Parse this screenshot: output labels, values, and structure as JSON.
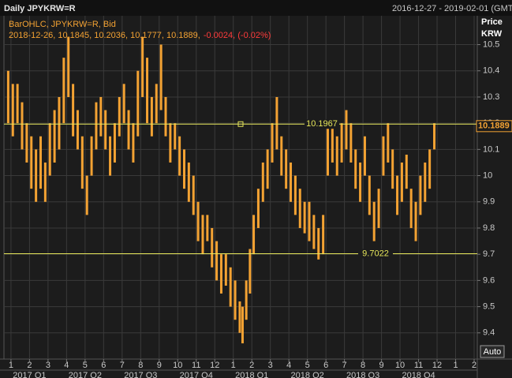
{
  "chart_data": {
    "type": "ohlc",
    "title": "Daily JPYKRW=R",
    "date_range": "2016-12-27 - 2019-02-01 (GMT",
    "axis_label": "Price",
    "axis_unit": "KRW",
    "legend_name": "BarOHLC, JPYKRW=R, Bid",
    "legend_info": "2018-12-26, 10.1845, 10.2036, 10.1777, 10.1889,",
    "legend_change": "-0.0024, (-0.02%)",
    "color": "#f3a233",
    "grid": true,
    "auto_button": "Auto",
    "last": 10.1889,
    "hlines": [
      {
        "value": 10.1967
      },
      {
        "value": 9.7022
      }
    ],
    "ylim": [
      9.3,
      10.61
    ],
    "yticks": [
      9.4,
      9.5,
      9.6,
      9.7,
      9.8,
      9.9,
      10,
      10.1,
      10.2,
      10.3,
      10.4,
      10.5
    ],
    "xlim": [
      0.62,
      26.17
    ],
    "xticks": [
      {
        "value": 1,
        "label": "1"
      },
      {
        "value": 2,
        "label": "2"
      },
      {
        "value": 3,
        "label": "3"
      },
      {
        "value": 4,
        "label": "4"
      },
      {
        "value": 5,
        "label": "5"
      },
      {
        "value": 6,
        "label": "6"
      },
      {
        "value": 7,
        "label": "7"
      },
      {
        "value": 8,
        "label": "8"
      },
      {
        "value": 9,
        "label": "9"
      },
      {
        "value": 10,
        "label": "10"
      },
      {
        "value": 11,
        "label": "11"
      },
      {
        "value": 12,
        "label": "12"
      },
      {
        "value": 13,
        "label": "1"
      },
      {
        "value": 14,
        "label": "2"
      },
      {
        "value": 15,
        "label": "3"
      },
      {
        "value": 16,
        "label": "4"
      },
      {
        "value": 17,
        "label": "5"
      },
      {
        "value": 18,
        "label": "6"
      },
      {
        "value": 19,
        "label": "7"
      },
      {
        "value": 20,
        "label": "8"
      },
      {
        "value": 21,
        "label": "9"
      },
      {
        "value": 22,
        "label": "10"
      },
      {
        "value": 23,
        "label": "11"
      },
      {
        "value": 24,
        "label": "12"
      },
      {
        "value": 25,
        "label": "1"
      },
      {
        "value": 26,
        "label": "2"
      }
    ],
    "quarters": [
      {
        "value": 2,
        "label": "2017 Q1"
      },
      {
        "value": 5,
        "label": "2017 Q2"
      },
      {
        "value": 8,
        "label": "2017 Q3"
      },
      {
        "value": 11,
        "label": "2017 Q4"
      },
      {
        "value": 14,
        "label": "2018 Q1"
      },
      {
        "value": 17,
        "label": "2018 Q2"
      },
      {
        "value": 20,
        "label": "2018 Q3"
      },
      {
        "value": 23,
        "label": "2018 Q4"
      }
    ],
    "x": [
      0.85,
      1.1,
      1.35,
      1.6,
      1.85,
      2.1,
      2.35,
      2.6,
      2.85,
      3.1,
      3.35,
      3.6,
      3.85,
      4.1,
      4.35,
      4.6,
      4.85,
      5.1,
      5.35,
      5.6,
      5.85,
      6.1,
      6.35,
      6.6,
      6.85,
      7.1,
      7.35,
      7.6,
      7.85,
      8.1,
      8.35,
      8.6,
      8.85,
      9.1,
      9.35,
      9.6,
      9.85,
      10.1,
      10.35,
      10.6,
      10.85,
      11.1,
      11.35,
      11.6,
      11.85,
      12.1,
      12.35,
      12.6,
      12.85,
      13.1,
      13.35,
      13.5,
      13.7,
      13.9,
      14.1,
      14.35,
      14.6,
      14.85,
      15.1,
      15.35,
      15.6,
      15.85,
      16.1,
      16.35,
      16.6,
      16.85,
      17.1,
      17.35,
      17.6,
      17.85,
      18.1,
      18.35,
      18.6,
      18.85,
      19.1,
      19.35,
      19.6,
      19.85,
      20.1,
      20.35,
      20.6,
      20.85,
      21.1,
      21.35,
      21.6,
      21.85,
      22.1,
      22.35,
      22.6,
      22.85,
      23.1,
      23.35,
      23.6,
      23.85
    ],
    "low": [
      10.2,
      10.15,
      10.2,
      10.1,
      10.05,
      9.95,
      9.9,
      9.95,
      9.9,
      10.0,
      10.05,
      10.1,
      10.2,
      10.3,
      10.15,
      10.1,
      9.95,
      9.85,
      10.0,
      10.1,
      10.15,
      10.1,
      10.0,
      10.05,
      10.15,
      10.2,
      10.1,
      10.05,
      10.15,
      10.3,
      10.2,
      10.15,
      10.2,
      10.25,
      10.15,
      10.05,
      10.1,
      10.0,
      9.95,
      9.9,
      9.85,
      9.75,
      9.7,
      9.75,
      9.65,
      9.6,
      9.55,
      9.58,
      9.5,
      9.45,
      9.4,
      9.36,
      9.45,
      9.55,
      9.7,
      9.8,
      9.9,
      9.95,
      10.05,
      10.1,
      10.0,
      9.95,
      9.9,
      9.85,
      9.8,
      9.78,
      9.75,
      9.72,
      9.68,
      9.7,
      10.0,
      10.05,
      10.0,
      10.05,
      10.1,
      10.05,
      9.95,
      9.9,
      10.0,
      9.85,
      9.75,
      9.8,
      10.0,
      10.05,
      9.95,
      9.85,
      9.9,
      9.95,
      9.8,
      9.75,
      9.85,
      9.9,
      9.95,
      10.1
    ],
    "high": [
      10.4,
      10.35,
      10.35,
      10.28,
      10.2,
      10.15,
      10.1,
      10.15,
      10.05,
      10.2,
      10.25,
      10.3,
      10.45,
      10.53,
      10.35,
      10.25,
      10.15,
      10.0,
      10.15,
      10.28,
      10.3,
      10.25,
      10.15,
      10.2,
      10.3,
      10.35,
      10.25,
      10.2,
      10.4,
      10.53,
      10.45,
      10.3,
      10.35,
      10.5,
      10.3,
      10.2,
      10.2,
      10.15,
      10.1,
      10.05,
      10.0,
      9.9,
      9.85,
      9.85,
      9.8,
      9.75,
      9.7,
      9.7,
      9.65,
      9.6,
      9.52,
      9.5,
      9.6,
      9.72,
      9.85,
      9.95,
      10.05,
      10.1,
      10.2,
      10.3,
      10.15,
      10.1,
      10.05,
      10.0,
      9.95,
      9.9,
      9.9,
      9.85,
      9.8,
      9.85,
      10.2,
      10.18,
      10.15,
      10.2,
      10.25,
      10.2,
      10.1,
      10.05,
      10.15,
      10.0,
      9.9,
      9.95,
      10.15,
      10.2,
      10.1,
      10.0,
      10.05,
      10.08,
      9.95,
      9.9,
      10.0,
      10.05,
      10.1,
      10.2
    ]
  }
}
